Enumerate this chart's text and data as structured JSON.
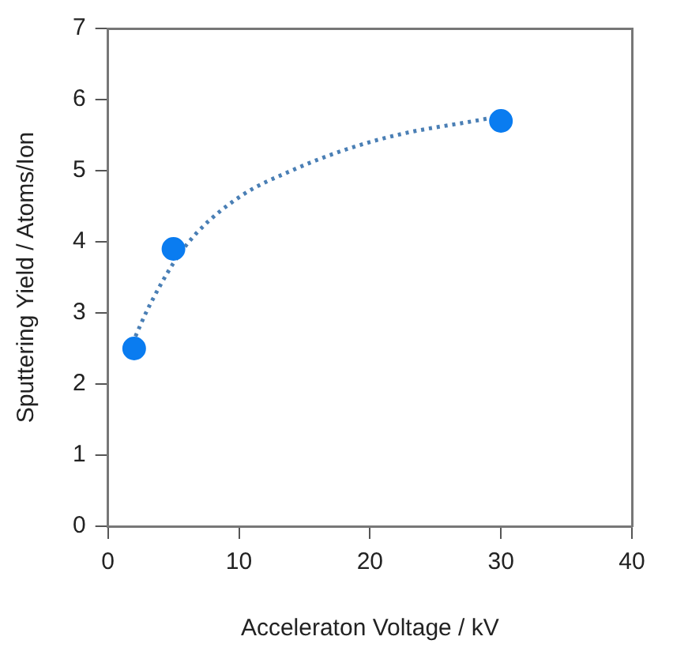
{
  "chart_data": {
    "type": "scatter",
    "xlabel": "Acceleraton Voltage / kV",
    "ylabel": "Sputtering Yield / Atoms/Ion",
    "xlim": [
      0,
      40
    ],
    "xticks": [
      0,
      10,
      20,
      30,
      40
    ],
    "ylim": [
      0,
      7
    ],
    "yticks": [
      0,
      1,
      2,
      3,
      4,
      5,
      6,
      7
    ],
    "grid": false,
    "legend": false,
    "marker": "circle",
    "series": [
      {
        "type": "scatter",
        "color": "#0a7cf0",
        "x": [
          2,
          5,
          30
        ],
        "values": [
          2.5,
          3.9,
          5.7
        ]
      },
      {
        "type": "line",
        "color": "#4a7fb5",
        "line_style": "dotted",
        "marker": "none",
        "x": [
          2.1,
          3,
          5,
          6.8,
          10.2,
          14,
          18.2,
          22.5,
          28,
          29.5
        ],
        "values": [
          2.67,
          3.04,
          3.7,
          4.13,
          4.65,
          5.0,
          5.3,
          5.52,
          5.7,
          5.75
        ]
      }
    ]
  }
}
